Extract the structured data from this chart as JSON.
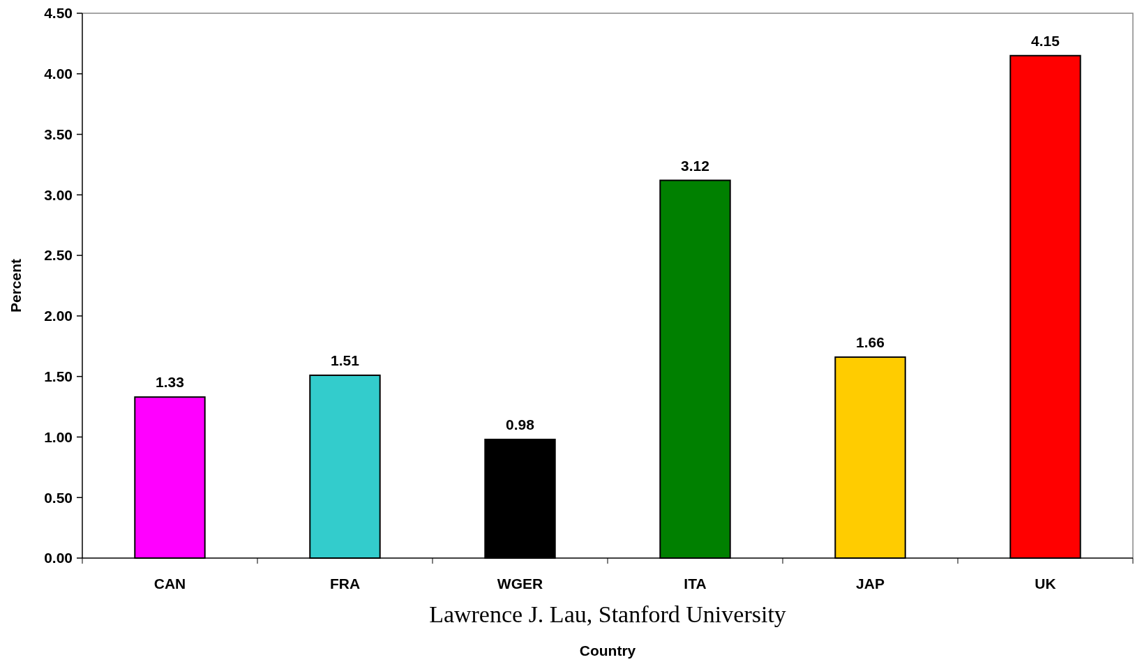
{
  "chart_data": {
    "type": "bar",
    "xlabel": "Country",
    "ylabel": "Percent",
    "categories": [
      "CAN",
      "FRA",
      "WGER",
      "ITA",
      "JAP",
      "UK"
    ],
    "values": [
      1.33,
      1.51,
      0.98,
      3.12,
      1.66,
      4.15
    ],
    "colors": [
      "#ff00ff",
      "#33cccc",
      "#000000",
      "#008000",
      "#ffcc00",
      "#ff0000"
    ],
    "ylim": [
      0,
      4.5
    ],
    "yticks": [
      {
        "value": 0,
        "label": "0.00"
      },
      {
        "value": 0.5,
        "label": "0.50"
      },
      {
        "value": 1,
        "label": "1.00"
      },
      {
        "value": 1.5,
        "label": "1.50"
      },
      {
        "value": 2,
        "label": "2.00"
      },
      {
        "value": 2.5,
        "label": "2.50"
      },
      {
        "value": 3,
        "label": "3.00"
      },
      {
        "value": 3.5,
        "label": "3.50"
      },
      {
        "value": 4,
        "label": "4.00"
      },
      {
        "value": 4.5,
        "label": "4.50"
      }
    ],
    "data_labels": true,
    "grid": false,
    "annotations": [
      "Lawrence J. Lau, Stanford University"
    ]
  }
}
